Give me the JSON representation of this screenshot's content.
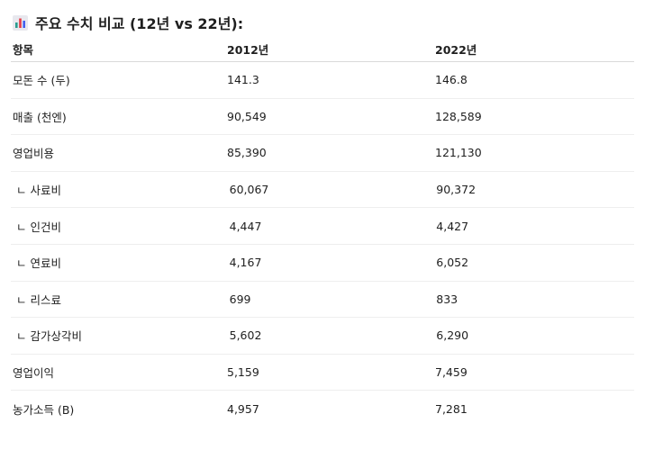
{
  "heading": {
    "icon": "bar-chart-icon",
    "text": "주요 수치 비교 (12년 vs 22년):"
  },
  "table": {
    "columns": [
      "항목",
      "2012년",
      "2022년"
    ],
    "rows": [
      {
        "label": "모돈 수 (두)",
        "v2012": "141.3",
        "v2022": "146.8",
        "indent": false
      },
      {
        "label": "매출 (천엔)",
        "v2012": "90,549",
        "v2022": "128,589",
        "indent": false
      },
      {
        "label": "영업비용",
        "v2012": "85,390",
        "v2022": "121,130",
        "indent": false
      },
      {
        "label": "ㄴ 사료비",
        "v2012": "60,067",
        "v2022": "90,372",
        "indent": true
      },
      {
        "label": "ㄴ 인건비",
        "v2012": "4,447",
        "v2022": "4,427",
        "indent": true
      },
      {
        "label": "ㄴ 연료비",
        "v2012": "4,167",
        "v2022": "6,052",
        "indent": true
      },
      {
        "label": "ㄴ 리스료",
        "v2012": "699",
        "v2022": "833",
        "indent": true
      },
      {
        "label": "ㄴ 감가상각비",
        "v2012": "5,602",
        "v2022": "6,290",
        "indent": true
      },
      {
        "label": "영업이익",
        "v2012": "5,159",
        "v2022": "7,459",
        "indent": false
      },
      {
        "label": "농가소득 (B)",
        "v2012": "4,957",
        "v2022": "7,281",
        "indent": false
      }
    ]
  }
}
